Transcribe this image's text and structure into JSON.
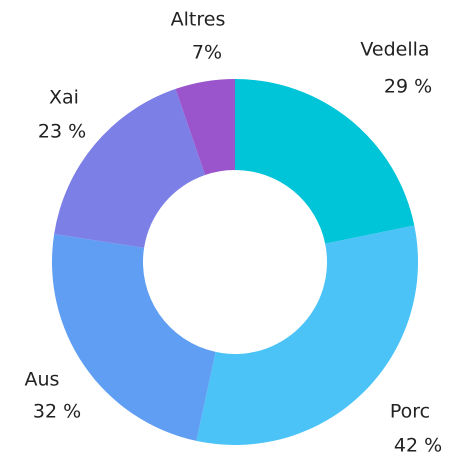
{
  "chart_data": {
    "type": "donut",
    "categories": [
      "Vedella",
      "Porc",
      "Aus",
      "Xai",
      "Altres"
    ],
    "values": [
      29,
      42,
      32,
      23,
      7
    ],
    "value_labels": [
      "29 %",
      "42 %",
      "32 %",
      "23 %",
      "7%"
    ],
    "colors": [
      "#00c5d8",
      "#4cc3f7",
      "#5f9ef3",
      "#7c80e6",
      "#9a55cc"
    ]
  }
}
